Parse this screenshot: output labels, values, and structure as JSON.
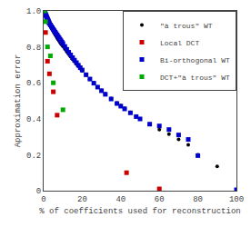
{
  "chart_data": {
    "type": "scatter",
    "xlabel": "% of coefficients used for reconstruction",
    "ylabel": "Approximation error",
    "xlim": [
      0,
      100
    ],
    "ylim": [
      0.0,
      1.0
    ],
    "xticks": [
      0,
      20,
      40,
      60,
      80,
      100
    ],
    "yticks": [
      0,
      0.2,
      0.4,
      0.6,
      0.8,
      {
        "value": 1.0,
        "label": "1.0"
      }
    ],
    "grid": false,
    "legend": "upper right",
    "series": [
      {
        "name": "\"à trous\" WT",
        "color": "#000000",
        "marker": "circle",
        "x": [
          0.2,
          0.4,
          0.6,
          0.8,
          1.0,
          1.2,
          1.4,
          1.6,
          1.8,
          2.0,
          2.2,
          2.4,
          2.6,
          2.8,
          3.0,
          3.5,
          4.0,
          4.5,
          5.0,
          5.5,
          6.0,
          6.5,
          7.0,
          7.5,
          8.0,
          8.5,
          9.0,
          9.5,
          10.0,
          11,
          12,
          13,
          14,
          15,
          16,
          17,
          18,
          19,
          20,
          22,
          24,
          26,
          28,
          30,
          32,
          35,
          38,
          40,
          42,
          45,
          48,
          50,
          55,
          60,
          65,
          70,
          75,
          80,
          90
        ],
        "values": [
          1.0,
          0.99,
          0.985,
          0.98,
          0.975,
          0.97,
          0.965,
          0.96,
          0.955,
          0.95,
          0.945,
          0.94,
          0.935,
          0.93,
          0.925,
          0.915,
          0.905,
          0.895,
          0.885,
          0.876,
          0.867,
          0.858,
          0.849,
          0.841,
          0.833,
          0.825,
          0.817,
          0.81,
          0.803,
          0.788,
          0.773,
          0.759,
          0.745,
          0.731,
          0.718,
          0.705,
          0.692,
          0.679,
          0.667,
          0.643,
          0.62,
          0.598,
          0.577,
          0.558,
          0.539,
          0.513,
          0.488,
          0.473,
          0.458,
          0.435,
          0.413,
          0.4,
          0.37,
          0.34,
          0.315,
          0.285,
          0.255,
          0.2,
          0.135
        ]
      },
      {
        "name": "Local DCT",
        "color": "#cc0000",
        "marker": "square",
        "x": [
          1.0,
          2.0,
          3.0,
          5.0,
          7.0,
          43.0,
          60.0
        ],
        "values": [
          0.88,
          0.72,
          0.65,
          0.55,
          0.42,
          0.1,
          0.01
        ]
      },
      {
        "name": "Bi-orthogonal WT",
        "color": "#0000cc",
        "marker": "square",
        "x": [
          0.2,
          0.4,
          0.6,
          0.8,
          1.0,
          1.2,
          1.4,
          1.6,
          1.8,
          2.0,
          2.2,
          2.4,
          2.6,
          2.8,
          3.0,
          3.5,
          4.0,
          4.5,
          5.0,
          5.5,
          6.0,
          6.5,
          7.0,
          7.5,
          8.0,
          8.5,
          9.0,
          9.5,
          10.0,
          11,
          12,
          13,
          14,
          15,
          16,
          17,
          18,
          19,
          20,
          22,
          24,
          26,
          28,
          30,
          32,
          35,
          38,
          40,
          42,
          45,
          48,
          50,
          55,
          60,
          65,
          70,
          75,
          80,
          100
        ],
        "values": [
          1.0,
          0.995,
          0.99,
          0.985,
          0.98,
          0.975,
          0.97,
          0.965,
          0.96,
          0.955,
          0.95,
          0.945,
          0.94,
          0.935,
          0.93,
          0.922,
          0.914,
          0.906,
          0.898,
          0.89,
          0.882,
          0.874,
          0.866,
          0.858,
          0.85,
          0.842,
          0.834,
          0.826,
          0.818,
          0.802,
          0.786,
          0.77,
          0.755,
          0.74,
          0.726,
          0.712,
          0.698,
          0.684,
          0.671,
          0.645,
          0.621,
          0.598,
          0.576,
          0.556,
          0.536,
          0.51,
          0.485,
          0.47,
          0.455,
          0.433,
          0.412,
          0.399,
          0.37,
          0.36,
          0.34,
          0.31,
          0.285,
          0.195,
          0.005
        ]
      },
      {
        "name": "DCT+\"à trous\" WT",
        "color": "#00aa00",
        "marker": "square",
        "x": [
          0.5,
          1.0,
          2.0,
          3.5,
          5.0,
          10.0
        ],
        "values": [
          1.0,
          0.94,
          0.8,
          0.75,
          0.6,
          0.45
        ]
      }
    ]
  }
}
